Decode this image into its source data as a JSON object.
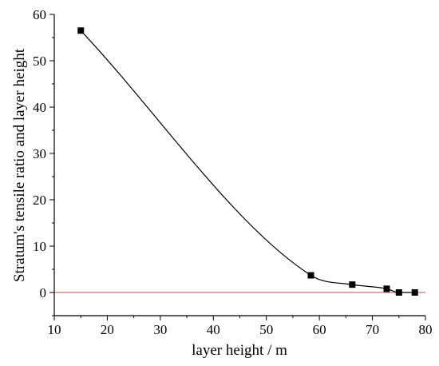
{
  "chart_data": {
    "type": "line",
    "xlabel": "layer height / m",
    "ylabel": "Stratum's tensile ratio and layer height",
    "xlim": [
      10,
      80
    ],
    "ylim": [
      -5,
      60
    ],
    "xticks": [
      10,
      20,
      30,
      40,
      50,
      60,
      70,
      80
    ],
    "yticks": [
      0,
      10,
      20,
      30,
      40,
      50,
      60
    ],
    "grid": false,
    "reference_line": {
      "y": 0,
      "color": "#c0504d"
    },
    "series": [
      {
        "x": [
          15.0,
          58.4,
          66.2,
          72.7,
          75.0,
          78.0
        ],
        "y": [
          56.5,
          3.7,
          1.7,
          0.8,
          0.0,
          0.0
        ],
        "marker": "square",
        "color": "#000000"
      }
    ]
  }
}
